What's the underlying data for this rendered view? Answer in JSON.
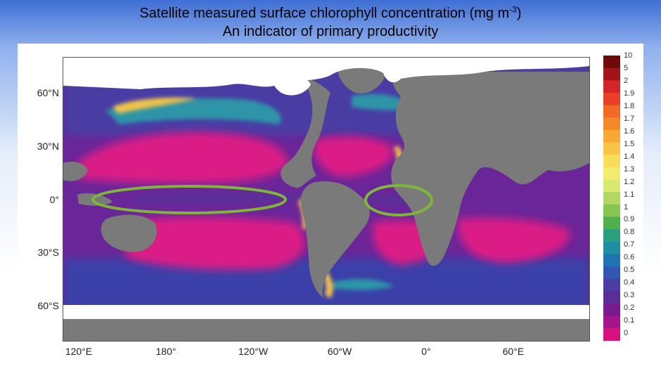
{
  "title": {
    "line1_prefix": "Satellite measured surface chlorophyll concentration (mg m",
    "line1_sup": "-3",
    "line1_suffix": ")",
    "line2": "An indicator of primary productivity"
  },
  "map": {
    "y_ticks": [
      "60°N",
      "30°N",
      "0°",
      "30°S",
      "60°S"
    ],
    "x_ticks": [
      "120°E",
      "180°",
      "120°W",
      "60°W",
      "0°",
      "60°E"
    ],
    "land_color": "#7a7a7a",
    "ice_color": "#ffffff",
    "highlight_ellipses": [
      {
        "region": "Equatorial Pacific",
        "color": "#7db63a"
      },
      {
        "region": "Equatorial Atlantic",
        "color": "#7db63a"
      }
    ]
  },
  "colorbar": {
    "labels": [
      "10",
      "5",
      "2",
      "1.9",
      "1.8",
      "1.7",
      "1.6",
      "1.5",
      "1.4",
      "1.3",
      "1.2",
      "1.1",
      "1",
      "0.9",
      "0.8",
      "0.7",
      "0.6",
      "0.5",
      "0.4",
      "0.3",
      "0.2",
      "0.1",
      "0"
    ],
    "colors": [
      "#6e0a0a",
      "#a3141a",
      "#d3262a",
      "#ec3d28",
      "#f06a25",
      "#f38a28",
      "#f6a935",
      "#f8c548",
      "#f9dc58",
      "#f3ec6e",
      "#d8e870",
      "#b1d764",
      "#86c552",
      "#4fb04c",
      "#2aa07f",
      "#1e8fa3",
      "#1f73b3",
      "#3257b0",
      "#4a3ea4",
      "#5b2d97",
      "#7a1a8f",
      "#a4148a",
      "#d8117e"
    ]
  }
}
